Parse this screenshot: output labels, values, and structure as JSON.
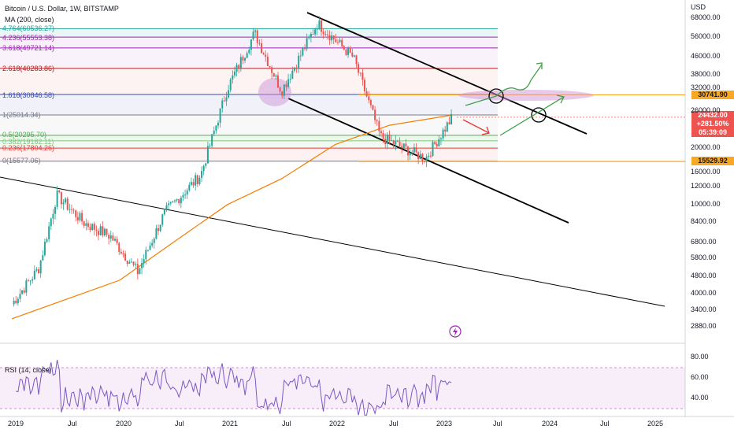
{
  "chart_data": {
    "type": "candlestick",
    "title": "Bitcoin / U.S. Dollar, 1W, BITSTAMP",
    "indicator_ma": "MA (200, close)",
    "indicator_rsi": "RSI (14, close)",
    "currency": "USD",
    "price_scale": "log",
    "ylim": [
      2700,
      80000
    ],
    "y_ticks": [
      "68000.00",
      "56000.00",
      "46000.00",
      "38000.00",
      "32000.00",
      "26000.00",
      "20000.00",
      "16000.00",
      "12000.00",
      "10000.00",
      "8400.00",
      "6800.00",
      "5800.00",
      "4800.00",
      "4000.00",
      "3400.00",
      "2880.00"
    ],
    "rsi_ticks": [
      "80.00",
      "60.00",
      "40.00"
    ],
    "x_ticks": [
      "2019",
      "Jul",
      "2020",
      "Jul",
      "2021",
      "Jul",
      "2022",
      "Jul",
      "2023",
      "Jul",
      "2024",
      "Jul",
      "2025"
    ],
    "fib_levels": [
      {
        "label": "4.764(60536.27)",
        "value": 60536.27,
        "color": "#26a69a"
      },
      {
        "label": "4.236(55553.38)",
        "value": 55553.38,
        "color": "#9c27b0"
      },
      {
        "label": "3.618(49721.14)",
        "value": 49721.14,
        "color": "#9c27b0"
      },
      {
        "label": "2.618(40283.86)",
        "value": 40283.86,
        "color": "#b71c1c"
      },
      {
        "label": "1.618(30846.58)",
        "value": 30846.58,
        "color": "#3949ab"
      },
      {
        "label": "1(25014.34)",
        "value": 25014.34,
        "color": "#787b86"
      },
      {
        "label": "0.5(20295.70)",
        "value": 20295.7,
        "color": "#4caf50"
      },
      {
        "label": "0.382(19182.11)",
        "value": 19182.11,
        "color": "#81c784"
      },
      {
        "label": "0.236(17804.26)",
        "value": 17804.26,
        "color": "#e53935"
      },
      {
        "label": "0(15577.06)",
        "value": 15577.06,
        "color": "#787b86"
      }
    ],
    "last_price": {
      "price": "24432.00",
      "change": "+281.50%",
      "countdown": "05:39:09"
    },
    "marked_levels": [
      {
        "label": "30741.90",
        "value": 30741.9
      },
      {
        "label": "15529.92",
        "value": 15529.92
      }
    ],
    "price_series_weekly_close_approx": [
      {
        "date": "2019-01",
        "price": 3600
      },
      {
        "date": "2019-04",
        "price": 5200
      },
      {
        "date": "2019-06",
        "price": 11000
      },
      {
        "date": "2019-09",
        "price": 8300
      },
      {
        "date": "2019-12",
        "price": 7200
      },
      {
        "date": "2020-03",
        "price": 5000
      },
      {
        "date": "2020-06",
        "price": 9200
      },
      {
        "date": "2020-10",
        "price": 13500
      },
      {
        "date": "2021-01",
        "price": 33000
      },
      {
        "date": "2021-04",
        "price": 58000
      },
      {
        "date": "2021-07",
        "price": 32000
      },
      {
        "date": "2021-11",
        "price": 64000
      },
      {
        "date": "2022-03",
        "price": 45000
      },
      {
        "date": "2022-06",
        "price": 20000
      },
      {
        "date": "2022-11",
        "price": 16000
      },
      {
        "date": "2023-02",
        "price": 24432
      }
    ],
    "ma200_approx": [
      {
        "date": "2019-01",
        "price": 3100
      },
      {
        "date": "2020-01",
        "price": 4600
      },
      {
        "date": "2020-07",
        "price": 6800
      },
      {
        "date": "2021-01",
        "price": 10000
      },
      {
        "date": "2021-07",
        "price": 13000
      },
      {
        "date": "2022-01",
        "price": 18500
      },
      {
        "date": "2022-07",
        "price": 22500
      },
      {
        "date": "2023-02",
        "price": 25000
      }
    ]
  }
}
